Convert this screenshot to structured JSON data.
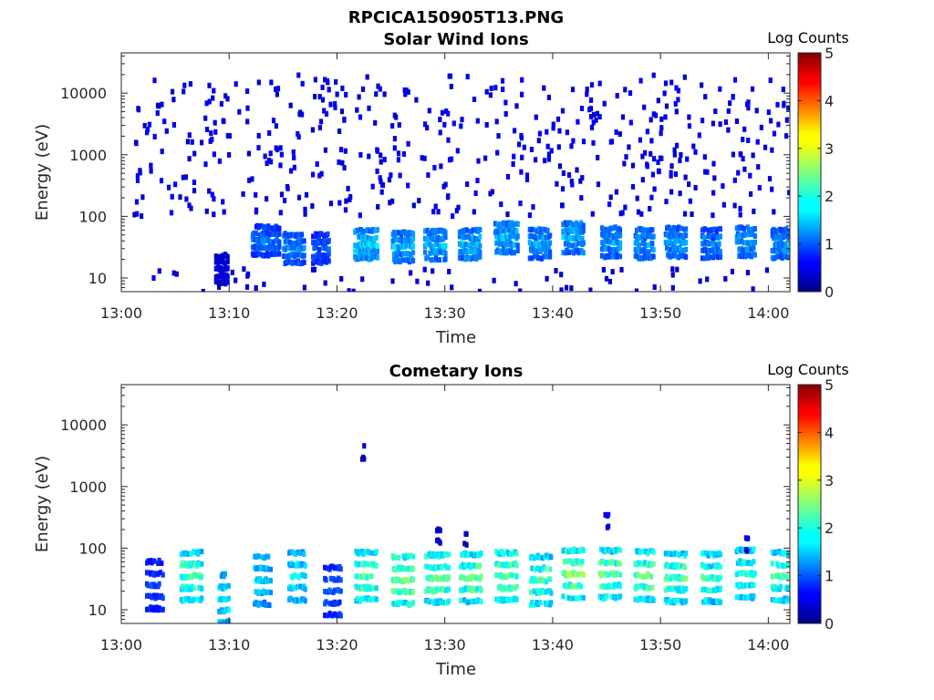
{
  "chart_data": [
    {
      "type": "heatmap",
      "figure_title": "RPCICA150905T13.PNG",
      "title": "Solar Wind Ions",
      "xlabel": "Time",
      "ylabel": "Energy (eV)",
      "x_range": [
        "13:00",
        "14:02"
      ],
      "y_scale": "log",
      "y_range_eV": [
        6,
        45000
      ],
      "x_ticks": [
        "13:00",
        "13:10",
        "13:20",
        "13:30",
        "13:40",
        "13:50",
        "14:00"
      ],
      "y_ticks": [
        "10",
        "100",
        "1000",
        "10000"
      ],
      "y_tick_values": [
        10,
        100,
        1000,
        10000
      ],
      "colorbar": {
        "label": "Log Counts",
        "ticks": [
          "0",
          "1",
          "2",
          "3",
          "4",
          "5"
        ],
        "range": [
          0,
          5
        ],
        "colormap": "jet"
      },
      "bursts": [
        {
          "t": 13.3,
          "e": 40,
          "c": 1.0,
          "wide": 2.6,
          "sporadic": true
        },
        {
          "t": 15.9,
          "e": 30,
          "c": 1.1,
          "wide": 2.0
        },
        {
          "t": 18.4,
          "e": 30,
          "c": 0.9,
          "wide": 1.6
        },
        {
          "t": 22.6,
          "e": 35,
          "c": 1.4,
          "wide": 2.2
        },
        {
          "t": 26.0,
          "e": 32,
          "c": 1.3,
          "wide": 2.0
        },
        {
          "t": 29.0,
          "e": 34,
          "c": 1.3,
          "wide": 2.0
        },
        {
          "t": 32.2,
          "e": 35,
          "c": 1.3,
          "wide": 2.0
        },
        {
          "t": 35.6,
          "e": 45,
          "c": 1.3,
          "wide": 2.2
        },
        {
          "t": 38.7,
          "e": 36,
          "c": 1.2,
          "wide": 2.0
        },
        {
          "t": 41.8,
          "e": 45,
          "c": 1.3,
          "wide": 2.0
        },
        {
          "t": 45.3,
          "e": 38,
          "c": 1.2,
          "wide": 1.8
        },
        {
          "t": 48.4,
          "e": 36,
          "c": 1.2,
          "wide": 1.8
        },
        {
          "t": 51.3,
          "e": 38,
          "c": 1.2,
          "wide": 2.0
        },
        {
          "t": 54.6,
          "e": 36,
          "c": 1.1,
          "wide": 1.8
        },
        {
          "t": 57.8,
          "e": 38,
          "c": 1.2,
          "wide": 1.8
        },
        {
          "t": 61.0,
          "e": 36,
          "c": 1.2,
          "wide": 1.6
        }
      ],
      "special": [
        {
          "t": 9.2,
          "e": 14,
          "c": 0.4,
          "wide": 1.2
        }
      ]
    },
    {
      "type": "heatmap",
      "title": "Cometary Ions",
      "xlabel": "Time",
      "ylabel": "Energy (eV)",
      "x_range": [
        "13:00",
        "14:02"
      ],
      "y_scale": "log",
      "y_range_eV": [
        6,
        45000
      ],
      "x_ticks": [
        "13:00",
        "13:10",
        "13:20",
        "13:30",
        "13:40",
        "13:50",
        "14:00"
      ],
      "y_ticks": [
        "10",
        "100",
        "1000",
        "10000"
      ],
      "y_tick_values": [
        10,
        100,
        1000,
        10000
      ],
      "colorbar": {
        "label": "Log Counts",
        "ticks": [
          "0",
          "1",
          "2",
          "3",
          "4",
          "5"
        ],
        "range": [
          0,
          5
        ],
        "colormap": "jet"
      },
      "bursts": [
        {
          "t": 3.0,
          "e": 25,
          "c": 0.8,
          "wide": 1.6
        },
        {
          "t": 6.4,
          "e": 35,
          "c": 1.9,
          "wide": 2.0
        },
        {
          "t": 9.4,
          "e": 15,
          "c": 1.6,
          "wide": 1.0
        },
        {
          "t": 13.0,
          "e": 30,
          "c": 1.5,
          "wide": 1.6
        },
        {
          "t": 16.2,
          "e": 35,
          "c": 1.6,
          "wide": 1.6
        },
        {
          "t": 19.5,
          "e": 20,
          "c": 0.9,
          "wide": 1.6
        },
        {
          "t": 22.6,
          "e": 35,
          "c": 2.0,
          "wide": 2.0
        },
        {
          "t": 26.0,
          "e": 30,
          "c": 2.1,
          "wide": 2.0
        },
        {
          "t": 29.2,
          "e": 32,
          "c": 2.0,
          "wide": 2.2
        },
        {
          "t": 32.3,
          "e": 33,
          "c": 2.0,
          "wide": 2.0
        },
        {
          "t": 35.6,
          "e": 35,
          "c": 2.0,
          "wide": 2.0
        },
        {
          "t": 38.8,
          "e": 30,
          "c": 1.9,
          "wide": 2.0
        },
        {
          "t": 41.8,
          "e": 38,
          "c": 2.1,
          "wide": 2.0
        },
        {
          "t": 45.2,
          "e": 38,
          "c": 2.0,
          "wide": 2.0
        },
        {
          "t": 48.4,
          "e": 36,
          "c": 2.0,
          "wide": 1.8
        },
        {
          "t": 51.3,
          "e": 33,
          "c": 1.9,
          "wide": 2.0
        },
        {
          "t": 54.6,
          "e": 33,
          "c": 1.8,
          "wide": 1.8
        },
        {
          "t": 57.8,
          "e": 38,
          "c": 1.8,
          "wide": 1.8
        },
        {
          "t": 61.0,
          "e": 35,
          "c": 1.9,
          "wide": 1.6
        }
      ],
      "special": [
        {
          "t": 22.3,
          "e": 3500,
          "c": 0.3,
          "wide": 0.3
        },
        {
          "t": 29.3,
          "e": 160,
          "c": 0.4,
          "wide": 0.4
        },
        {
          "t": 31.8,
          "e": 140,
          "c": 0.3,
          "wide": 0.3
        },
        {
          "t": 44.9,
          "e": 270,
          "c": 0.5,
          "wide": 0.4
        },
        {
          "t": 57.9,
          "e": 115,
          "c": 0.4,
          "wide": 0.3
        }
      ]
    }
  ]
}
